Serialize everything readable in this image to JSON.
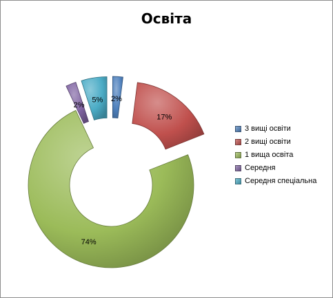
{
  "chart_data": {
    "type": "pie",
    "style": "doughnut-exploded",
    "title": "Освіта",
    "legend_position": "right",
    "slices": [
      {
        "label": "3 вищі освіти",
        "value": 2,
        "data_label": "2%",
        "color": "#4f81bd"
      },
      {
        "label": "2 вищі освіти",
        "value": 17,
        "data_label": "17%",
        "color": "#c0504d"
      },
      {
        "label": "1 вища освіта",
        "value": 74,
        "data_label": "74%",
        "color": "#9bbb59"
      },
      {
        "label": "Середня",
        "value": 2,
        "data_label": "2%",
        "color": "#8064a2"
      },
      {
        "label": "Середня спеціальна",
        "value": 5,
        "data_label": "5%",
        "color": "#4bacc6"
      }
    ]
  }
}
